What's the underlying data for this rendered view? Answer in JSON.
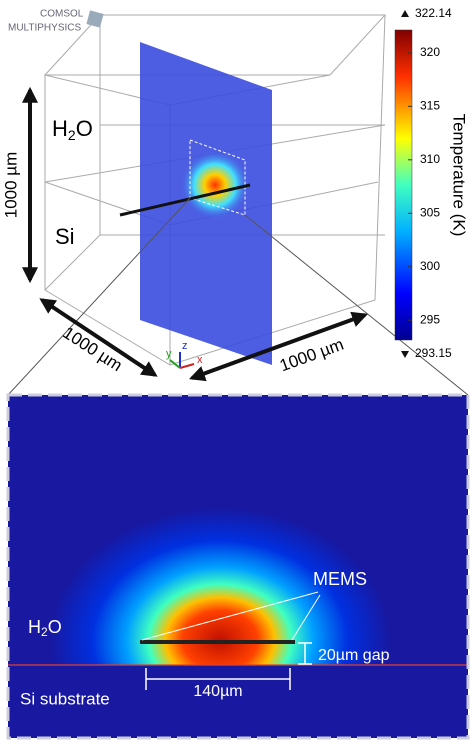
{
  "logo": {
    "line1": "COMSOL",
    "line2": "MULTIPHYSICS"
  },
  "overview": {
    "water": {
      "base": "H",
      "sub": "2",
      "end": "O"
    },
    "silicon": "Si",
    "dim_height": "1000 µm",
    "dim_depth": "1000 µm",
    "dim_width": "1000 µm",
    "axes": {
      "y": "y",
      "z": "z",
      "x": "x"
    }
  },
  "colorbar": {
    "max_label": "322.14",
    "min_label": "293.15",
    "max": 322.14,
    "min": 293.15,
    "ticks": [
      320,
      315,
      310,
      305,
      300,
      295
    ],
    "title": "Temperature (K)"
  },
  "detail": {
    "mems": "MEMS",
    "water": {
      "base": "H",
      "sub": "2",
      "end": "O"
    },
    "gap": "20µm gap",
    "length": "140µm",
    "substrate": "Si substrate"
  }
}
